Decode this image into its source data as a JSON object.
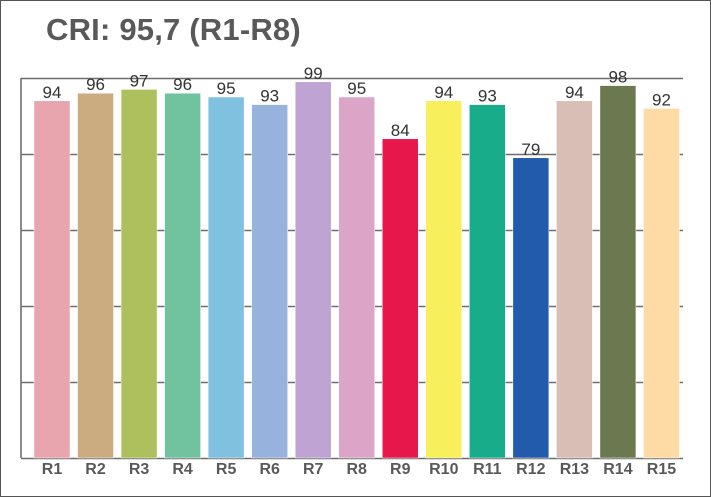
{
  "chart_data": {
    "type": "bar",
    "title": "CRI: 95,7 (R1-R8)",
    "categories": [
      "R1",
      "R2",
      "R3",
      "R4",
      "R5",
      "R6",
      "R7",
      "R8",
      "R9",
      "R10",
      "R11",
      "R12",
      "R13",
      "R14",
      "R15"
    ],
    "values": [
      94,
      96,
      97,
      96,
      95,
      93,
      99,
      95,
      84,
      94,
      93,
      79,
      94,
      98,
      92
    ],
    "colors": [
      "#E8A5AE",
      "#CBAB80",
      "#AEC05E",
      "#70C39E",
      "#80C1DF",
      "#98B2DE",
      "#BFA3D3",
      "#DBA5C8",
      "#E8174B",
      "#F7EF5B",
      "#18AC8A",
      "#235BAC",
      "#D8BEB5",
      "#6B7850",
      "#FEDAA5"
    ],
    "ylim": [
      0,
      100
    ],
    "grid": true,
    "xlabel": "",
    "ylabel": ""
  }
}
